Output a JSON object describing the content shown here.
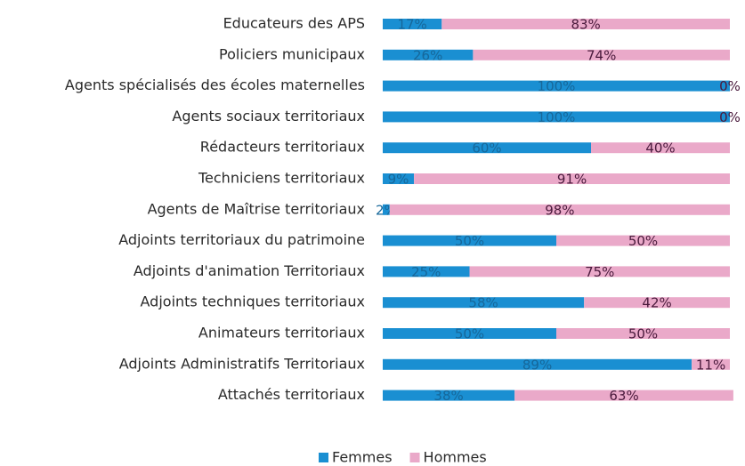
{
  "chart_data": {
    "type": "stacked-bar",
    "orientation": "horizontal",
    "categories": [
      "Educateurs des APS",
      "Policiers municipaux",
      "Agents spécialisés des écoles maternelles",
      "Agents sociaux territoriaux",
      "Rédacteurs territoriaux",
      "Techniciens territoriaux",
      "Agents de Maîtrise territoriaux",
      "Adjoints territoriaux du patrimoine",
      "Adjoints d'animation Territoriaux",
      "Adjoints techniques territoriaux",
      "Animateurs territoriaux",
      "Adjoints Administratifs Territoriaux",
      "Attachés territoriaux"
    ],
    "series": [
      {
        "name": "Femmes",
        "color": "#1a8fd2",
        "label_color": "#16679a",
        "values": [
          17,
          26,
          100,
          100,
          60,
          9,
          2,
          50,
          25,
          58,
          50,
          89,
          38
        ],
        "value_labels": [
          "17%",
          "26%",
          "100%",
          "100%",
          "60%",
          "9%",
          "2%",
          "50%",
          "25%",
          "58%",
          "50%",
          "89%",
          "38%"
        ]
      },
      {
        "name": "Hommes",
        "color": "#eaa9c9",
        "label_color": "#4a1a3c",
        "values": [
          83,
          74,
          0,
          0,
          40,
          91,
          98,
          50,
          75,
          42,
          50,
          11,
          63
        ],
        "value_labels": [
          "83%",
          "74%",
          "0%",
          "0%",
          "40%",
          "91%",
          "98%",
          "50%",
          "75%",
          "42%",
          "50%",
          "11%",
          "63%"
        ]
      }
    ],
    "xlim": [
      0,
      100
    ],
    "legend": "bottom"
  }
}
